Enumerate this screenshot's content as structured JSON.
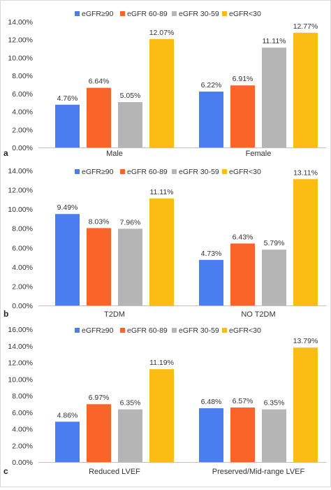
{
  "chart_data": [
    {
      "type": "bar",
      "panel_label": "a",
      "categories": [
        "Male",
        "Female"
      ],
      "series": [
        {
          "name": "eGFR≥90",
          "values": [
            4.76,
            6.22
          ]
        },
        {
          "name": "eGFR 60-89",
          "values": [
            6.64,
            6.91
          ]
        },
        {
          "name": "eGFR 30-59",
          "values": [
            5.05,
            11.11
          ]
        },
        {
          "name": "eGFR<30",
          "values": [
            12.07,
            12.77
          ]
        }
      ],
      "data_labels": [
        [
          "4.76%",
          "6.22%"
        ],
        [
          "6.64%",
          "6.91%"
        ],
        [
          "5.05%",
          "11.11%"
        ],
        [
          "12.07%",
          "12.77%"
        ]
      ],
      "yticks": [
        "0.00%",
        "2.00%",
        "4.00%",
        "6.00%",
        "8.00%",
        "10.00%",
        "12.00%",
        "14.00%"
      ],
      "ylim": [
        0,
        14
      ],
      "legend_position": "top",
      "grid": false
    },
    {
      "type": "bar",
      "panel_label": "b",
      "categories": [
        "T2DM",
        "NO T2DM"
      ],
      "series": [
        {
          "name": "eGFR≥90",
          "values": [
            9.49,
            4.73
          ]
        },
        {
          "name": "eGFR 60-89",
          "values": [
            8.03,
            6.43
          ]
        },
        {
          "name": "eGFR 30-59",
          "values": [
            7.96,
            5.79
          ]
        },
        {
          "name": "eGFR<30",
          "values": [
            11.11,
            13.11
          ]
        }
      ],
      "data_labels": [
        [
          "9.49%",
          "4.73%"
        ],
        [
          "8.03%",
          "6.43%"
        ],
        [
          "7.96%",
          "5.79%"
        ],
        [
          "11.11%",
          "13.11%"
        ]
      ],
      "yticks": [
        "0.00%",
        "2.00%",
        "4.00%",
        "6.00%",
        "8.00%",
        "10.00%",
        "12.00%",
        "14.00%"
      ],
      "ylim": [
        0,
        14
      ],
      "legend_position": "top",
      "grid": false
    },
    {
      "type": "bar",
      "panel_label": "c",
      "categories": [
        "Reduced LVEF",
        "Preserved/Mid-range LVEF"
      ],
      "series": [
        {
          "name": "eGFR≥90",
          "values": [
            4.86,
            6.48
          ]
        },
        {
          "name": "eGFR 60-89",
          "values": [
            6.97,
            6.57
          ]
        },
        {
          "name": "eGFR 30-59",
          "values": [
            6.35,
            6.35
          ]
        },
        {
          "name": "eGFR<30",
          "values": [
            11.19,
            13.79
          ]
        }
      ],
      "data_labels": [
        [
          "4.86%",
          "6.48%"
        ],
        [
          "6.97%",
          "6.57%"
        ],
        [
          "6.35%",
          "6.35%"
        ],
        [
          "11.19%",
          "13.79%"
        ]
      ],
      "yticks": [
        "0.00%",
        "2.00%",
        "4.00%",
        "6.00%",
        "8.00%",
        "10.00%",
        "12.00%",
        "14.00%",
        "16.00%"
      ],
      "ylim": [
        0,
        16
      ],
      "legend_position": "top",
      "grid": false
    }
  ],
  "series_colors": [
    "#4a7ef0",
    "#fa6428",
    "#b5b5b5",
    "#fbbc14"
  ]
}
